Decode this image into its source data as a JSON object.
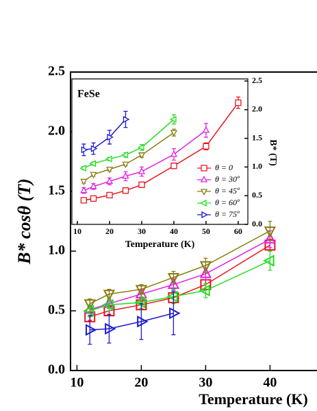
{
  "chart_data": [
    {
      "type": "line",
      "x_label": "Temperature (K)",
      "y_label": "B* cosθ (T)",
      "xlim": [
        9,
        47.3
      ],
      "ylim": [
        0,
        2.5
      ],
      "xticks": [
        10,
        20,
        30,
        40
      ],
      "yticks": [
        {
          "value": 0,
          "label": "0.0"
        },
        0.5,
        {
          "value": 1,
          "label": "1.0"
        },
        1.5,
        {
          "value": 2,
          "label": "2.0"
        },
        2.5
      ],
      "series": [
        {
          "color": "#e8141c",
          "marker": "square",
          "x": [
            12,
            15,
            20,
            25,
            30,
            40
          ],
          "values": [
            0.45,
            0.5,
            0.55,
            0.61,
            0.72,
            1.05
          ],
          "errors": [
            0.03,
            0.03,
            0.03,
            0.04,
            0.04,
            0.05
          ]
        },
        {
          "color": "#e020e0",
          "marker": "up",
          "x": [
            12,
            15,
            20,
            25,
            30,
            40
          ],
          "values": [
            0.51,
            0.56,
            0.64,
            0.72,
            0.81,
            1.1
          ],
          "errors": [
            0.03,
            0.04,
            0.04,
            0.05,
            0.05,
            0.07
          ]
        },
        {
          "color": "#8a7a10",
          "marker": "down",
          "x": [
            12,
            15,
            20,
            25,
            30,
            40
          ],
          "values": [
            0.56,
            0.64,
            0.68,
            0.78,
            0.88,
            1.17
          ],
          "errors": [
            0.04,
            0.04,
            0.04,
            0.05,
            0.06,
            0.08
          ]
        },
        {
          "color": "#22dd22",
          "marker": "left",
          "x": [
            12,
            15,
            20,
            25,
            30,
            40
          ],
          "values": [
            0.5,
            0.55,
            0.57,
            0.62,
            0.67,
            0.92
          ],
          "errors": [
            0.05,
            0.05,
            0.05,
            0.06,
            0.06,
            0.08
          ]
        },
        {
          "color": "#1a1ad0",
          "marker": "right",
          "x": [
            12,
            15,
            20,
            25
          ],
          "values": [
            0.34,
            0.35,
            0.41,
            0.48
          ],
          "errors": [
            0.12,
            0.12,
            0.15,
            0.18
          ]
        }
      ]
    },
    {
      "type": "line",
      "annotation": "FeSe",
      "x_label": "Temperature (K)",
      "y_label": "B* (T)",
      "y_axis_side": "right",
      "xlim": [
        8.3,
        63
      ],
      "ylim": [
        0,
        2.5
      ],
      "xticks": [
        10,
        20,
        30,
        40,
        50,
        60
      ],
      "yticks": [
        {
          "value": 0,
          "label": "0.0"
        },
        0.5,
        {
          "value": 1,
          "label": "1.0"
        },
        1.5,
        {
          "value": 2,
          "label": "2.0"
        },
        2.5
      ],
      "legend": "lower right",
      "series": [
        {
          "name": "θ = 0",
          "color": "#e8141c",
          "marker": "square",
          "x": [
            12,
            15,
            20,
            25,
            30,
            40,
            50,
            60
          ],
          "values": [
            0.42,
            0.45,
            0.51,
            0.59,
            0.69,
            1.02,
            1.36,
            2.12
          ],
          "errors": [
            0.03,
            0.03,
            0.03,
            0.03,
            0.03,
            0.05,
            0.06,
            0.1
          ]
        },
        {
          "name": "θ = 30º",
          "color": "#e020e0",
          "marker": "up",
          "x": [
            12,
            15,
            20,
            25,
            30,
            40,
            50
          ],
          "values": [
            0.59,
            0.66,
            0.75,
            0.84,
            0.92,
            1.22,
            1.64
          ],
          "errors": [
            0.05,
            0.05,
            0.06,
            0.08,
            0.08,
            0.1,
            0.12
          ]
        },
        {
          "name": "θ = 45º",
          "color": "#8a7a10",
          "marker": "down",
          "x": [
            12,
            15,
            20,
            25,
            30,
            40
          ],
          "values": [
            0.75,
            0.87,
            0.96,
            1.05,
            1.21,
            1.6
          ],
          "errors": [
            0.03,
            0.03,
            0.03,
            0.03,
            0.04,
            0.06
          ]
        },
        {
          "name": "θ = 60º",
          "color": "#22dd22",
          "marker": "left",
          "x": [
            12,
            15,
            20,
            25,
            30,
            40
          ],
          "values": [
            0.98,
            1.06,
            1.14,
            1.21,
            1.34,
            1.83
          ],
          "errors": [
            0.03,
            0.03,
            0.03,
            0.04,
            0.05,
            0.08
          ]
        },
        {
          "name": "θ = 75º",
          "color": "#1a1ad0",
          "marker": "right",
          "x": [
            12,
            15,
            20,
            25
          ],
          "values": [
            1.3,
            1.32,
            1.52,
            1.83
          ],
          "errors": [
            0.1,
            0.1,
            0.12,
            0.14
          ]
        }
      ]
    }
  ]
}
